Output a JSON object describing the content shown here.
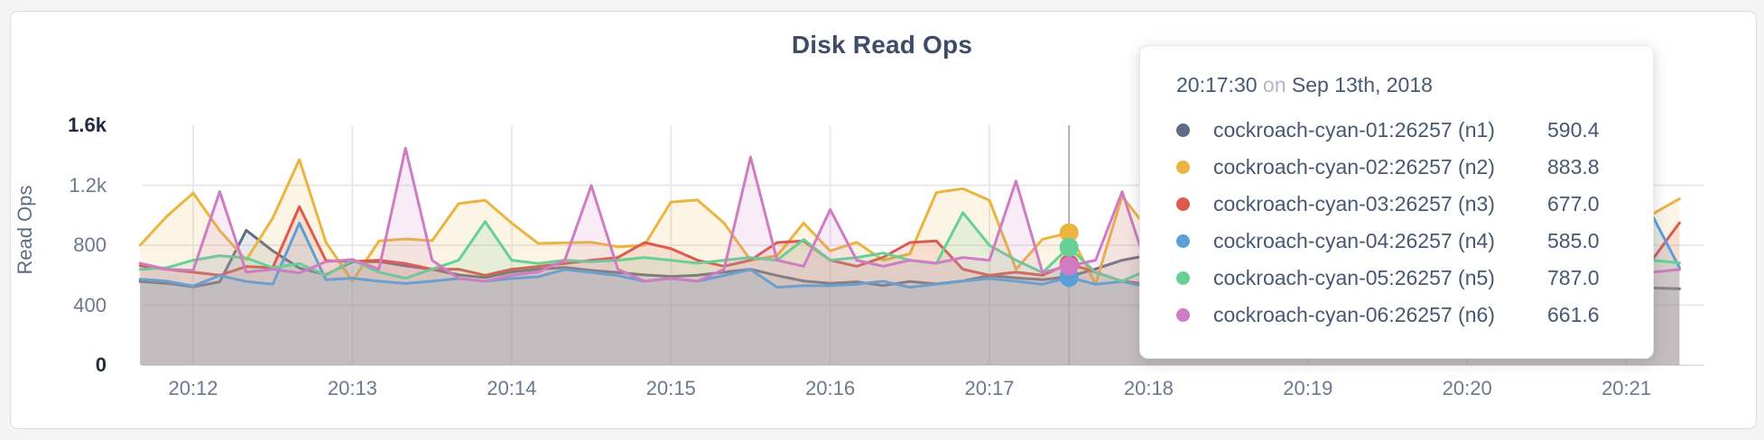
{
  "page": {
    "background": "#f4f4f5",
    "card_background": "#ffffff",
    "card_border": "#dcdcdf"
  },
  "chart": {
    "title": "Disk Read Ops",
    "ylabel": "Read Ops"
  },
  "chart_data": {
    "type": "area",
    "title": "Disk Read Ops",
    "xlabel": "",
    "ylabel": "Read Ops",
    "ylim": [
      0,
      1600
    ],
    "grid": true,
    "legend_position": "none",
    "x_start_time": "20:11:40",
    "x_step_seconds": 10,
    "x_tick_labels": [
      "20:12",
      "20:13",
      "20:14",
      "20:15",
      "20:16",
      "20:17",
      "20:18",
      "20:19",
      "20:20",
      "20:21"
    ],
    "y_ticks": [
      0,
      400,
      800,
      1200,
      1600
    ],
    "y_tick_labels": [
      "0",
      "400",
      "800",
      "1.2k",
      "1.6k"
    ],
    "hover_time": "20:17:30",
    "series": [
      {
        "name": "cockroach-cyan-01:26257 (n1)",
        "node": "n1",
        "color": "#5f6c87",
        "hover_value": 590.4,
        "values": [
          558,
          546,
          522,
          556,
          900,
          762,
          648,
          604,
          690,
          692,
          662,
          640,
          602,
          584,
          622,
          640,
          652,
          632,
          618,
          602,
          592,
          600,
          620,
          640,
          598,
          562,
          546,
          556,
          532,
          558,
          542,
          562,
          598,
          582,
          570,
          590.4,
          642,
          700,
          734,
          700,
          658,
          622,
          584,
          562,
          600,
          638,
          618,
          582,
          562,
          600,
          618,
          640,
          618,
          582,
          560,
          545,
          540,
          515,
          510
        ]
      },
      {
        "name": "cockroach-cyan-02:26257 (n2)",
        "node": "n2",
        "color": "#eab440",
        "hover_value": 883.8,
        "values": [
          800,
          992,
          1148,
          898,
          702,
          982,
          1372,
          820,
          562,
          828,
          842,
          830,
          1078,
          1100,
          948,
          812,
          816,
          820,
          790,
          800,
          1088,
          1102,
          948,
          700,
          730,
          948,
          762,
          820,
          700,
          742,
          1152,
          1178,
          1100,
          640,
          840,
          883.8,
          542,
          1128,
          898,
          760,
          820,
          700,
          760,
          898,
          820,
          760,
          700,
          820,
          760,
          700,
          780,
          820,
          760,
          700,
          760,
          820,
          760,
          1010,
          1110
        ]
      },
      {
        "name": "cockroach-cyan-03:26257 (n3)",
        "node": "n3",
        "color": "#dd5a4d",
        "hover_value": 677.0,
        "values": [
          662,
          640,
          620,
          600,
          658,
          650,
          1058,
          698,
          692,
          700,
          678,
          640,
          640,
          600,
          640,
          658,
          678,
          700,
          718,
          818,
          778,
          700,
          660,
          700,
          818,
          828,
          700,
          660,
          720,
          818,
          828,
          640,
          600,
          620,
          600,
          677,
          620,
          560,
          540,
          620,
          678,
          640,
          600,
          640,
          700,
          660,
          620,
          660,
          700,
          640,
          600,
          660,
          620,
          660,
          700,
          660,
          620,
          710,
          950
        ]
      },
      {
        "name": "cockroach-cyan-04:26257 (n4)",
        "node": "n4",
        "color": "#5b9fd9",
        "hover_value": 585.0,
        "values": [
          574,
          560,
          528,
          598,
          558,
          540,
          948,
          570,
          580,
          560,
          545,
          560,
          578,
          560,
          578,
          590,
          638,
          618,
          598,
          560,
          578,
          560,
          598,
          638,
          520,
          530,
          530,
          540,
          560,
          520,
          540,
          560,
          578,
          560,
          540,
          585,
          540,
          558,
          520,
          482,
          540,
          560,
          540,
          520,
          560,
          578,
          540,
          520,
          560,
          578,
          560,
          540,
          560,
          578,
          540,
          520,
          560,
          990,
          650
        ]
      },
      {
        "name": "cockroach-cyan-05:26257 (n5)",
        "node": "n5",
        "color": "#67d095",
        "hover_value": 787.0,
        "values": [
          638,
          650,
          700,
          730,
          715,
          650,
          678,
          600,
          700,
          620,
          580,
          640,
          700,
          958,
          700,
          678,
          700,
          690,
          700,
          718,
          700,
          680,
          700,
          718,
          700,
          838,
          700,
          718,
          748,
          700,
          678,
          1018,
          800,
          700,
          618,
          787,
          618,
          560,
          638,
          618,
          658,
          700,
          658,
          618,
          658,
          700,
          658,
          618,
          658,
          700,
          658,
          618,
          658,
          700,
          658,
          618,
          640,
          700,
          682
        ]
      },
      {
        "name": "cockroach-cyan-06:26257 (n6)",
        "node": "n6",
        "color": "#cf7cc4",
        "hover_value": 661.6,
        "values": [
          680,
          640,
          632,
          1158,
          620,
          640,
          615,
          690,
          705,
          640,
          1448,
          700,
          580,
          560,
          600,
          622,
          700,
          1198,
          640,
          560,
          580,
          560,
          640,
          1388,
          700,
          660,
          1038,
          700,
          660,
          700,
          680,
          718,
          700,
          1228,
          618,
          661.6,
          700,
          1158,
          618,
          560,
          640,
          700,
          660,
          618,
          678,
          640,
          600,
          660,
          700,
          640,
          600,
          660,
          700,
          660,
          618,
          680,
          640,
          620,
          638
        ]
      }
    ]
  },
  "tooltip": {
    "time": "20:17:30",
    "separator": "on",
    "date": "Sep 13th, 2018",
    "rows": [
      {
        "label": "cockroach-cyan-01:26257 (n1)",
        "value": "590.4",
        "color": "#5f6c87"
      },
      {
        "label": "cockroach-cyan-02:26257 (n2)",
        "value": "883.8",
        "color": "#eab440"
      },
      {
        "label": "cockroach-cyan-03:26257 (n3)",
        "value": "677.0",
        "color": "#dd5a4d"
      },
      {
        "label": "cockroach-cyan-04:26257 (n4)",
        "value": "585.0",
        "color": "#5b9fd9"
      },
      {
        "label": "cockroach-cyan-05:26257 (n5)",
        "value": "787.0",
        "color": "#67d095"
      },
      {
        "label": "cockroach-cyan-06:26257 (n6)",
        "value": "661.6",
        "color": "#cf7cc4"
      }
    ]
  }
}
